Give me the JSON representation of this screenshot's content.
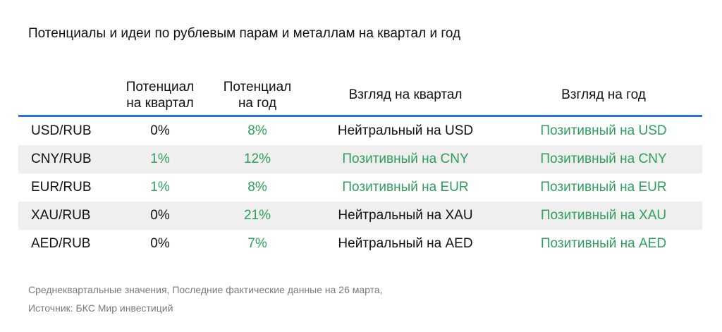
{
  "title": "Потенциалы и идеи по рублевым парам и металлам на квартал и год",
  "headers": {
    "pair": "",
    "quarter_potential_line1": "Потенциал",
    "quarter_potential_line2": "на квартал",
    "year_potential_line1": "Потенциал",
    "year_potential_line2": "на год",
    "quarter_view": "Взгляд на квартал",
    "year_view": "Взгляд на год"
  },
  "rows": [
    {
      "pair": "USD/RUB",
      "quarter_potential": "0%",
      "year_potential": "8%",
      "quarter_view": "Нейтральный на USD",
      "year_view": "Позитивный на USD",
      "quarter_potential_tone": "neutral",
      "year_potential_tone": "positive",
      "quarter_view_tone": "neutral",
      "year_view_tone": "positive"
    },
    {
      "pair": "CNY/RUB",
      "quarter_potential": "1%",
      "year_potential": "12%",
      "quarter_view": "Позитивный на CNY",
      "year_view": "Позитивный на CNY",
      "quarter_potential_tone": "positive",
      "year_potential_tone": "positive",
      "quarter_view_tone": "positive",
      "year_view_tone": "positive"
    },
    {
      "pair": "EUR/RUB",
      "quarter_potential": "1%",
      "year_potential": "8%",
      "quarter_view": "Позитивный на EUR",
      "year_view": "Позитивный на EUR",
      "quarter_potential_tone": "positive",
      "year_potential_tone": "positive",
      "quarter_view_tone": "positive",
      "year_view_tone": "positive"
    },
    {
      "pair": "XAU/RUB",
      "quarter_potential": "0%",
      "year_potential": "21%",
      "quarter_view": "Нейтральный на XAU",
      "year_view": "Позитивный на XAU",
      "quarter_potential_tone": "neutral",
      "year_potential_tone": "positive",
      "quarter_view_tone": "neutral",
      "year_view_tone": "positive"
    },
    {
      "pair": "AED/RUB",
      "quarter_potential": "0%",
      "year_potential": "7%",
      "quarter_view": "Нейтральный на AED",
      "year_view": "Позитивный на AED",
      "quarter_potential_tone": "neutral",
      "year_potential_tone": "positive",
      "quarter_view_tone": "neutral",
      "year_view_tone": "positive"
    }
  ],
  "footnotes": {
    "line1": "Среднеквартальные значения, Последние фактические данные на 26 марта,",
    "line2": "Источник: БКС Мир инвестиций"
  },
  "colors": {
    "positive": "#2e9e5e",
    "neutral": "#111111",
    "header_rule": "#2f6fde",
    "shaded_row": "#efefef"
  }
}
